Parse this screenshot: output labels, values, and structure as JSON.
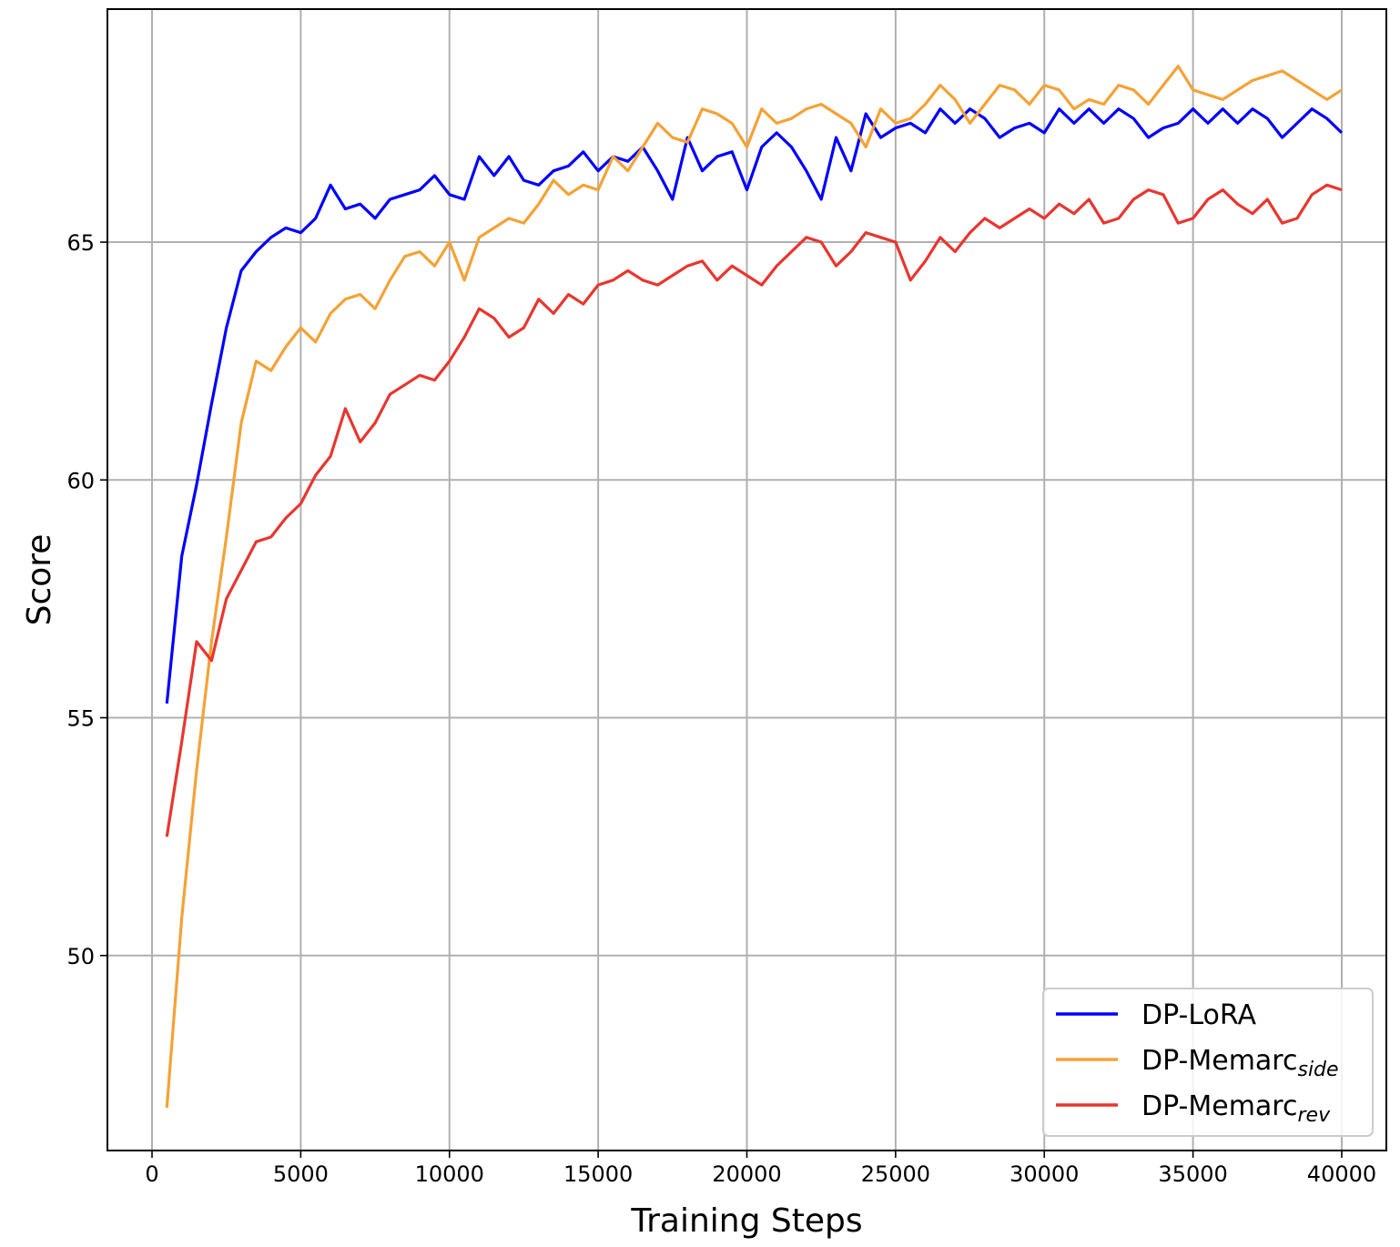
{
  "chart_data": {
    "type": "line",
    "xlabel": "Training Steps",
    "ylabel": "Score",
    "xlim": [
      -1500,
      41500
    ],
    "ylim": [
      45.9,
      69.9
    ],
    "xticks": [
      0,
      5000,
      10000,
      15000,
      20000,
      25000,
      30000,
      35000,
      40000
    ],
    "xtick_labels": [
      "0",
      "5000",
      "10000",
      "15000",
      "20000",
      "25000",
      "30000",
      "35000",
      "40000"
    ],
    "yticks": [
      50,
      55,
      60,
      65
    ],
    "ytick_labels": [
      "50",
      "55",
      "60",
      "65"
    ],
    "grid": true,
    "legend_position": "lower-right",
    "x": [
      500,
      1000,
      1500,
      2000,
      2500,
      3000,
      3500,
      4000,
      4500,
      5000,
      5500,
      6000,
      6500,
      7000,
      7500,
      8000,
      8500,
      9000,
      9500,
      10000,
      10500,
      11000,
      11500,
      12000,
      12500,
      13000,
      13500,
      14000,
      14500,
      15000,
      15500,
      16000,
      16500,
      17000,
      17500,
      18000,
      18500,
      19000,
      19500,
      20000,
      20500,
      21000,
      21500,
      22000,
      22500,
      23000,
      23500,
      24000,
      24500,
      25000,
      25500,
      26000,
      26500,
      27000,
      27500,
      28000,
      28500,
      29000,
      29500,
      30000,
      30500,
      31000,
      31500,
      32000,
      32500,
      33000,
      33500,
      34000,
      34500,
      35000,
      35500,
      36000,
      36500,
      37000,
      37500,
      38000,
      38500,
      39000,
      39500,
      40000
    ],
    "series": [
      {
        "name": "DP-LoRA",
        "legend_main": "DP-LoRA",
        "legend_sub": "",
        "color": "#0000ff",
        "values": [
          55.3,
          58.4,
          59.9,
          61.6,
          63.2,
          64.4,
          64.8,
          65.1,
          65.3,
          65.2,
          65.5,
          66.2,
          65.7,
          65.8,
          65.5,
          65.9,
          66.0,
          66.1,
          66.4,
          66.0,
          65.9,
          66.8,
          66.4,
          66.8,
          66.3,
          66.2,
          66.5,
          66.6,
          66.9,
          66.5,
          66.8,
          66.7,
          67.0,
          66.5,
          65.9,
          67.2,
          66.5,
          66.8,
          66.9,
          66.1,
          67.0,
          67.3,
          67.0,
          66.5,
          65.9,
          67.2,
          66.5,
          67.7,
          67.2,
          67.4,
          67.5,
          67.3,
          67.8,
          67.5,
          67.8,
          67.6,
          67.2,
          67.4,
          67.5,
          67.3,
          67.8,
          67.5,
          67.8,
          67.5,
          67.8,
          67.6,
          67.2,
          67.4,
          67.5,
          67.8,
          67.5,
          67.8,
          67.5,
          67.8,
          67.6,
          67.2,
          67.5,
          67.8,
          67.6,
          67.3
        ]
      },
      {
        "name": "DP-Memarc_side",
        "legend_main": "DP-Memarc",
        "legend_sub": "side",
        "color": "#f4a236",
        "values": [
          46.8,
          50.8,
          53.9,
          56.6,
          58.8,
          61.2,
          62.5,
          62.3,
          62.8,
          63.2,
          62.9,
          63.5,
          63.8,
          63.9,
          63.6,
          64.2,
          64.7,
          64.8,
          64.5,
          65.0,
          64.2,
          65.1,
          65.3,
          65.5,
          65.4,
          65.8,
          66.3,
          66.0,
          66.2,
          66.1,
          66.8,
          66.5,
          67.0,
          67.5,
          67.2,
          67.1,
          67.8,
          67.7,
          67.5,
          67.0,
          67.8,
          67.5,
          67.6,
          67.8,
          67.9,
          67.7,
          67.5,
          67.0,
          67.8,
          67.5,
          67.6,
          67.9,
          68.3,
          68.0,
          67.5,
          67.9,
          68.3,
          68.2,
          67.9,
          68.3,
          68.2,
          67.8,
          68.0,
          67.9,
          68.3,
          68.2,
          67.9,
          68.3,
          68.7,
          68.2,
          68.1,
          68.0,
          68.2,
          68.4,
          68.5,
          68.6,
          68.4,
          68.2,
          68.0,
          68.2
        ]
      },
      {
        "name": "DP-Memarc_rev",
        "legend_main": "DP-Memarc",
        "legend_sub": "rev",
        "color": "#e8362e",
        "values": [
          52.5,
          54.5,
          56.6,
          56.2,
          57.5,
          58.1,
          58.7,
          58.8,
          59.2,
          59.5,
          60.1,
          60.5,
          61.5,
          60.8,
          61.2,
          61.8,
          62.0,
          62.2,
          62.1,
          62.5,
          63.0,
          63.6,
          63.4,
          63.0,
          63.2,
          63.8,
          63.5,
          63.9,
          63.7,
          64.1,
          64.2,
          64.4,
          64.2,
          64.1,
          64.3,
          64.5,
          64.6,
          64.2,
          64.5,
          64.3,
          64.1,
          64.5,
          64.8,
          65.1,
          65.0,
          64.5,
          64.8,
          65.2,
          65.1,
          65.0,
          64.2,
          64.6,
          65.1,
          64.8,
          65.2,
          65.5,
          65.3,
          65.5,
          65.7,
          65.5,
          65.8,
          65.6,
          65.9,
          65.4,
          65.5,
          65.9,
          66.1,
          66.0,
          65.4,
          65.5,
          65.9,
          66.1,
          65.8,
          65.6,
          65.9,
          65.4,
          65.5,
          66.0,
          66.2,
          66.1
        ]
      }
    ]
  }
}
